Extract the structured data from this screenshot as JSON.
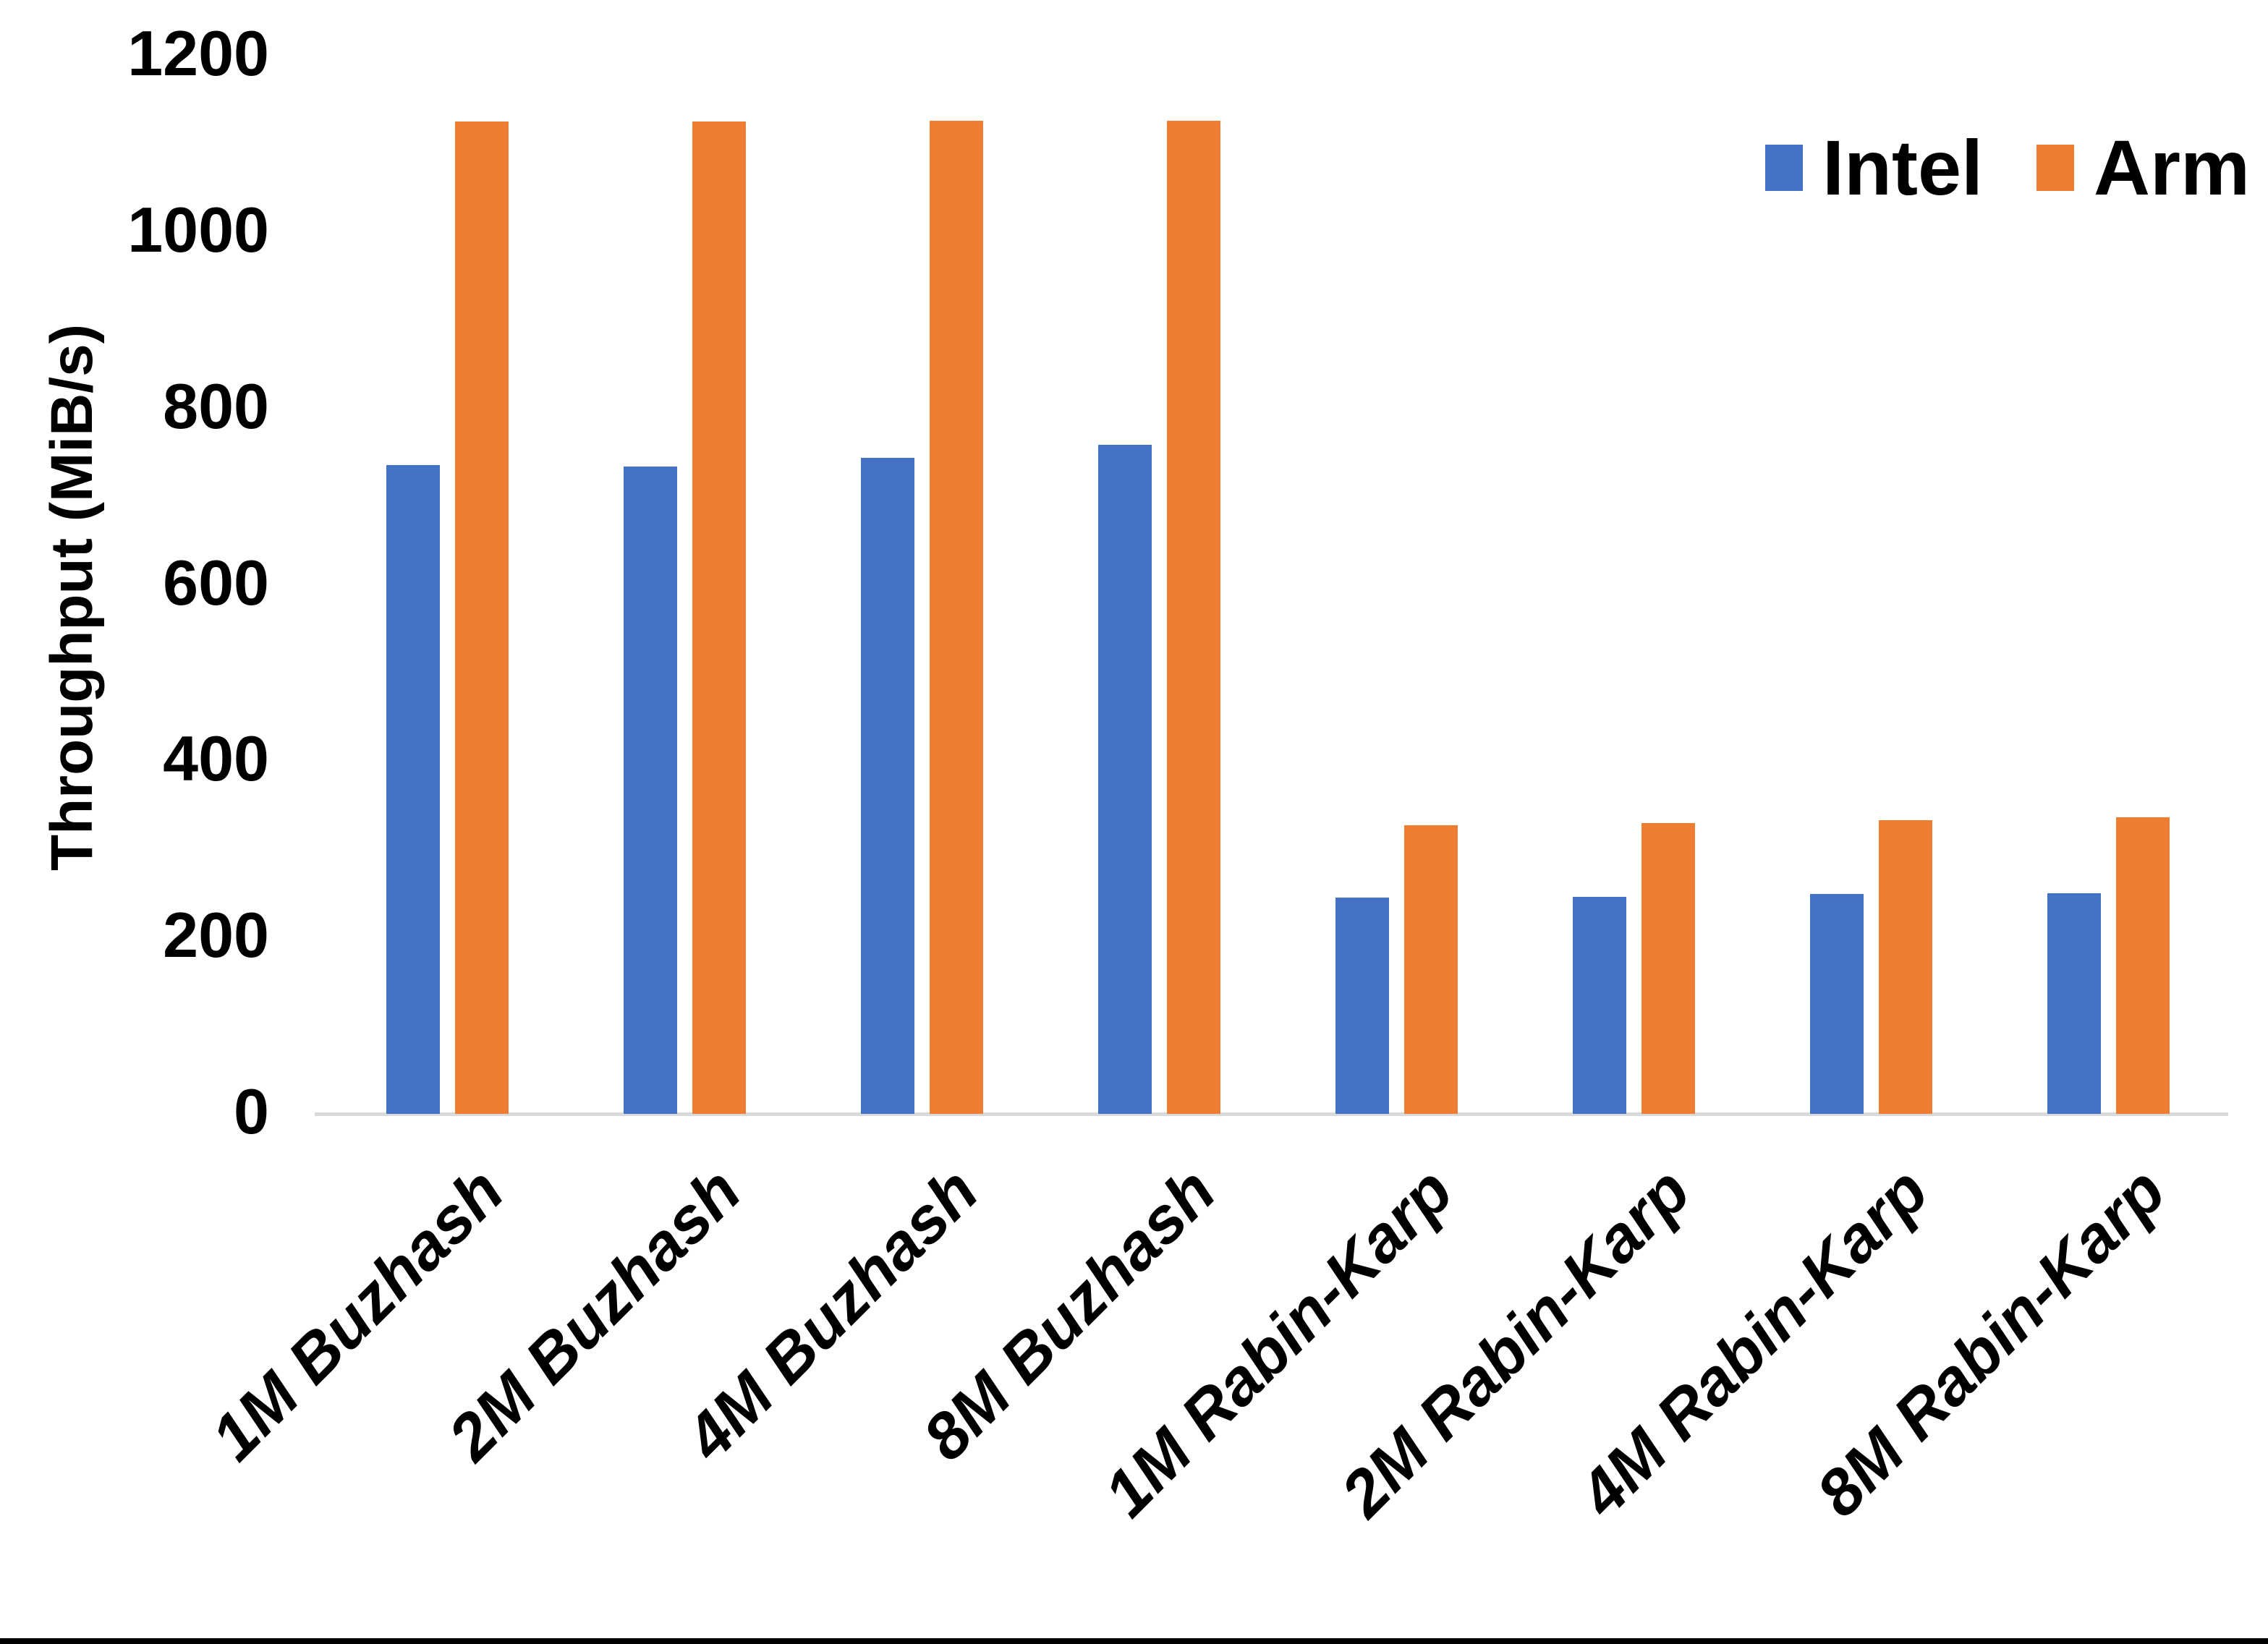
{
  "chart_data": {
    "type": "bar",
    "title": "",
    "ylabel": "Throughput (MiB/s)",
    "xlabel": "",
    "categories": [
      "1M Buzhash",
      "2M Buzhash",
      "4M Buzhash",
      "8M Buzhash",
      "1M Rabin-Karp",
      "2M Rabin-Karp",
      "4M Rabin-Karp",
      "8M Rabin-Karp"
    ],
    "series": [
      {
        "name": "Intel",
        "color": "#4472C4",
        "values": [
          736,
          734,
          744,
          759,
          245,
          246,
          249,
          250
        ]
      },
      {
        "name": "Arm",
        "color": "#ED7D31",
        "values": [
          1125,
          1125,
          1126,
          1126,
          327,
          330,
          333,
          336
        ]
      }
    ],
    "y_ticks": [
      0,
      200,
      400,
      600,
      800,
      1000,
      1200
    ],
    "ylim": [
      0,
      1200
    ],
    "grid": false,
    "legend_position": "top-right",
    "x_label_rotation_deg": -45,
    "axis_line_color": "#D9D9D9",
    "text_color": "#000000",
    "background_color": "#FFFFFF"
  }
}
